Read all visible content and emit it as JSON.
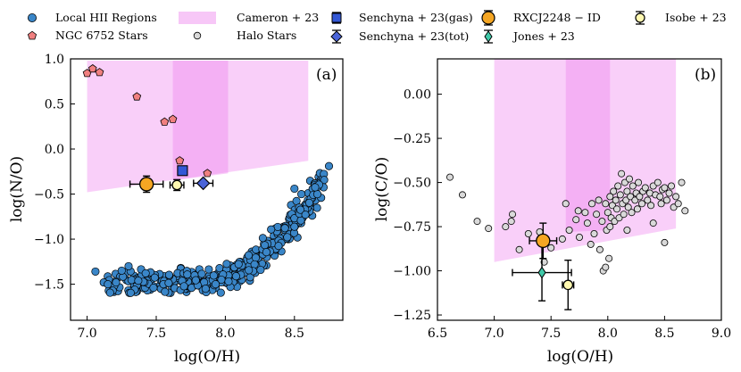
{
  "legend": {
    "items": [
      {
        "key": "hii",
        "label": "Local HII Regions"
      },
      {
        "key": "ngc",
        "label": "NGC 6752 Stars"
      },
      {
        "key": "cameron",
        "label": "Cameron + 23"
      },
      {
        "key": "halo",
        "label": "Halo Stars"
      },
      {
        "key": "senchyna_gas",
        "label": "Senchyna + 23(gas)"
      },
      {
        "key": "senchyna_tot",
        "label": "Senchyna + 23(tot)"
      },
      {
        "key": "rxcj",
        "label": "RXCJ2248 − ID"
      },
      {
        "key": "jones",
        "label": "Jones + 23"
      },
      {
        "key": "isobe",
        "label": "Isobe + 23"
      }
    ]
  },
  "colors": {
    "hii": "#3a86c8",
    "ngc": "#f08080",
    "cameron": "#ee82ee",
    "halo": "#d9d9d9",
    "senchyna_gas": "#3358d6",
    "senchyna_tot": "#4a64d8",
    "rxcj": "#f5a623",
    "jones": "#40c9a9",
    "isobe": "#fff8b0"
  },
  "chart_data": [
    {
      "type": "scatter",
      "panel": "a",
      "panel_label": "(a)",
      "xlabel": "log(O/H)",
      "ylabel": "log(N/O)",
      "xlim": [
        6.88,
        8.85
      ],
      "ylim": [
        -1.9,
        1.0
      ],
      "xticks": [
        7.0,
        7.5,
        8.0,
        8.5
      ],
      "xtick_labels": [
        "7.0",
        "7.5",
        "8.0",
        "8.5"
      ],
      "yticks": [
        1.0,
        0.5,
        0.0,
        -0.5,
        -1.0,
        -1.5
      ],
      "ytick_labels": [
        "1.0",
        "0.5",
        "0.0",
        "−0.5",
        "−1.0",
        "−1.5"
      ],
      "cameron_band": {
        "outer": [
          [
            7.0,
            0.98
          ],
          [
            8.6,
            0.98
          ],
          [
            8.6,
            -0.13
          ],
          [
            7.0,
            -0.48
          ]
        ],
        "inner": [
          [
            7.62,
            0.98
          ],
          [
            8.02,
            0.98
          ],
          [
            8.02,
            -0.27
          ],
          [
            7.62,
            -0.35
          ]
        ]
      },
      "ngc6752_stars": [
        [
          7.0,
          0.84
        ],
        [
          7.04,
          0.89
        ],
        [
          7.09,
          0.85
        ],
        [
          7.36,
          0.58
        ],
        [
          7.56,
          0.3
        ],
        [
          7.62,
          0.33
        ],
        [
          7.67,
          -0.13
        ],
        [
          7.87,
          -0.27
        ]
      ],
      "hii_note": "dense cloud of ~400 local HII regions from log(O/H) 7.1 to 8.75, log(N/O) -1.6 to -0.2",
      "senchyna_gas": {
        "x": 7.69,
        "y": -0.24
      },
      "senchyna_tot": {
        "x": 7.84,
        "y": -0.38,
        "xerr": 0.07
      },
      "rxcj2248": {
        "x": 7.43,
        "y": -0.39,
        "xerr": 0.12,
        "yerr": 0.09
      },
      "isobe": {
        "x": 7.65,
        "y": -0.4,
        "xerr": 0.05,
        "yerr": 0.06
      }
    },
    {
      "type": "scatter",
      "panel": "b",
      "panel_label": "(b)",
      "xlabel": "log(O/H)",
      "ylabel": "log(C/O)",
      "xlim": [
        6.5,
        9.0
      ],
      "ylim": [
        -1.28,
        0.2
      ],
      "xticks": [
        6.5,
        7.0,
        7.5,
        8.0,
        8.5,
        9.0
      ],
      "xtick_labels": [
        "6.5",
        "7.0",
        "7.5",
        "8.0",
        "8.5",
        "9.0"
      ],
      "yticks": [
        0.0,
        -0.25,
        -0.5,
        -0.75,
        -1.0,
        -1.25
      ],
      "ytick_labels": [
        "0.00",
        "−0.25",
        "−0.50",
        "−0.75",
        "−1.00",
        "−1.25"
      ],
      "cameron_band": {
        "outer": [
          [
            7.0,
            0.2
          ],
          [
            8.6,
            0.2
          ],
          [
            8.6,
            -0.76
          ],
          [
            7.0,
            -0.95
          ]
        ],
        "inner": [
          [
            7.63,
            0.2
          ],
          [
            8.02,
            0.2
          ],
          [
            8.02,
            -0.77
          ],
          [
            7.63,
            -0.78
          ]
        ]
      },
      "halo_stars": [
        [
          6.61,
          -0.47
        ],
        [
          6.72,
          -0.57
        ],
        [
          6.85,
          -0.72
        ],
        [
          6.95,
          -0.76
        ],
        [
          7.1,
          -0.75
        ],
        [
          7.15,
          -0.72
        ],
        [
          7.16,
          -0.68
        ],
        [
          7.22,
          -0.88
        ],
        [
          7.3,
          -0.79
        ],
        [
          7.4,
          -0.78
        ],
        [
          7.44,
          -0.95
        ],
        [
          7.6,
          -0.82
        ],
        [
          7.63,
          -0.62
        ],
        [
          7.66,
          -0.77
        ],
        [
          7.72,
          -0.71
        ],
        [
          7.74,
          -0.66
        ],
        [
          7.75,
          -0.81
        ],
        [
          7.8,
          -0.67
        ],
        [
          7.82,
          -0.73
        ],
        [
          7.85,
          -0.85
        ],
        [
          7.86,
          -0.62
        ],
        [
          7.88,
          -0.79
        ],
        [
          7.9,
          -0.68
        ],
        [
          7.92,
          -0.6
        ],
        [
          7.93,
          -0.88
        ],
        [
          7.95,
          -0.72
        ],
        [
          7.96,
          -1.0
        ],
        [
          7.98,
          -0.62
        ],
        [
          7.99,
          -0.77
        ],
        [
          8.0,
          -0.67
        ],
        [
          8.01,
          -0.93
        ],
        [
          8.02,
          -0.58
        ],
        [
          8.03,
          -0.7
        ],
        [
          8.04,
          -0.63
        ],
        [
          8.05,
          -0.55
        ],
        [
          8.06,
          -0.72
        ],
        [
          8.07,
          -0.6
        ],
        [
          8.08,
          -0.65
        ],
        [
          8.09,
          -0.52
        ],
        [
          8.1,
          -0.7
        ],
        [
          8.11,
          -0.57
        ],
        [
          8.12,
          -0.45
        ],
        [
          8.13,
          -0.62
        ],
        [
          8.14,
          -0.68
        ],
        [
          8.15,
          -0.5
        ],
        [
          8.16,
          -0.6
        ],
        [
          8.17,
          -0.55
        ],
        [
          8.18,
          -0.64
        ],
        [
          8.19,
          -0.48
        ],
        [
          8.2,
          -0.58
        ],
        [
          8.21,
          -0.67
        ],
        [
          8.22,
          -0.52
        ],
        [
          8.24,
          -0.6
        ],
        [
          8.25,
          -0.56
        ],
        [
          8.26,
          -0.65
        ],
        [
          8.27,
          -0.5
        ],
        [
          8.28,
          -0.58
        ],
        [
          8.3,
          -0.62
        ],
        [
          8.31,
          -0.55
        ],
        [
          8.33,
          -0.53
        ],
        [
          8.35,
          -0.6
        ],
        [
          8.37,
          -0.56
        ],
        [
          8.38,
          -0.63
        ],
        [
          8.4,
          -0.52
        ],
        [
          8.42,
          -0.57
        ],
        [
          8.44,
          -0.5
        ],
        [
          8.46,
          -0.58
        ],
        [
          8.47,
          -0.62
        ],
        [
          8.48,
          -0.54
        ],
        [
          8.5,
          -0.53
        ],
        [
          8.52,
          -0.6
        ],
        [
          8.54,
          -0.56
        ],
        [
          8.56,
          -0.52
        ],
        [
          8.58,
          -0.64
        ],
        [
          8.6,
          -0.58
        ],
        [
          8.62,
          -0.62
        ],
        [
          8.65,
          -0.5
        ],
        [
          8.68,
          -0.66
        ],
        [
          7.5,
          -0.87
        ],
        [
          7.98,
          -0.98
        ],
        [
          8.02,
          -0.75
        ],
        [
          8.17,
          -0.77
        ],
        [
          8.4,
          -0.73
        ],
        [
          8.5,
          -0.84
        ]
      ],
      "rxcj2248": {
        "x": 7.43,
        "y": -0.83,
        "xerr": 0.12,
        "yerr": 0.1
      },
      "jones": {
        "x": 7.42,
        "y": -1.01,
        "xerr": 0.26,
        "yerr": 0.16
      },
      "isobe": {
        "x": 7.65,
        "y": -1.08,
        "xerr": 0.05,
        "yerr": 0.14
      }
    }
  ]
}
